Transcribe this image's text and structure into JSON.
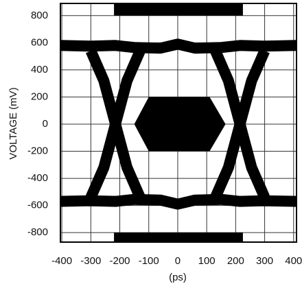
{
  "chart_data": {
    "type": "line",
    "x_label": "(ps)",
    "y_label": "VOLTAGE (mV)",
    "xlim": [
      -405,
      410
    ],
    "ylim": [
      -870,
      890
    ],
    "xticks": [
      -400,
      -300,
      -200,
      -100,
      0,
      100,
      200,
      300,
      400
    ],
    "yticks": [
      -800,
      -600,
      -400,
      -200,
      0,
      200,
      400,
      600,
      800
    ],
    "grid": true,
    "color": "#000000",
    "series": [
      {
        "x": [
          -405,
          -300,
          -215,
          -150,
          -60,
          0,
          60,
          150,
          215,
          300,
          410
        ],
        "values": [
          580,
          575,
          580,
          565,
          560,
          590,
          560,
          565,
          580,
          575,
          580
        ]
      },
      {
        "x": [
          -405,
          -300,
          -215,
          -150,
          -60,
          0,
          60,
          150,
          215,
          300,
          410
        ],
        "values": [
          -570,
          -565,
          -570,
          -555,
          -560,
          -590,
          -560,
          -555,
          -570,
          -565,
          -570
        ]
      },
      {
        "x": [
          -300,
          -255,
          -215,
          -175,
          -130
        ],
        "values": [
          -540,
          -320,
          0,
          320,
          540
        ]
      },
      {
        "x": [
          -300,
          -255,
          -215,
          -175,
          -130
        ],
        "values": [
          540,
          320,
          0,
          -320,
          -540
        ]
      },
      {
        "x": [
          130,
          175,
          215,
          255,
          300
        ],
        "values": [
          -540,
          -320,
          0,
          320,
          540
        ]
      },
      {
        "x": [
          130,
          175,
          215,
          255,
          300
        ],
        "values": [
          540,
          320,
          0,
          -320,
          -540
        ]
      }
    ],
    "mask": [
      {
        "x": [
          -220,
          225,
          225,
          -220
        ],
        "values": [
          800,
          800,
          890,
          890
        ]
      },
      {
        "x": [
          -150,
          -100,
          110,
          165,
          110,
          -100
        ],
        "values": [
          0,
          200,
          200,
          0,
          -200,
          -200
        ]
      },
      {
        "x": [
          -220,
          225,
          225,
          -220
        ],
        "values": [
          -800,
          -800,
          -870,
          -870
        ]
      }
    ]
  }
}
